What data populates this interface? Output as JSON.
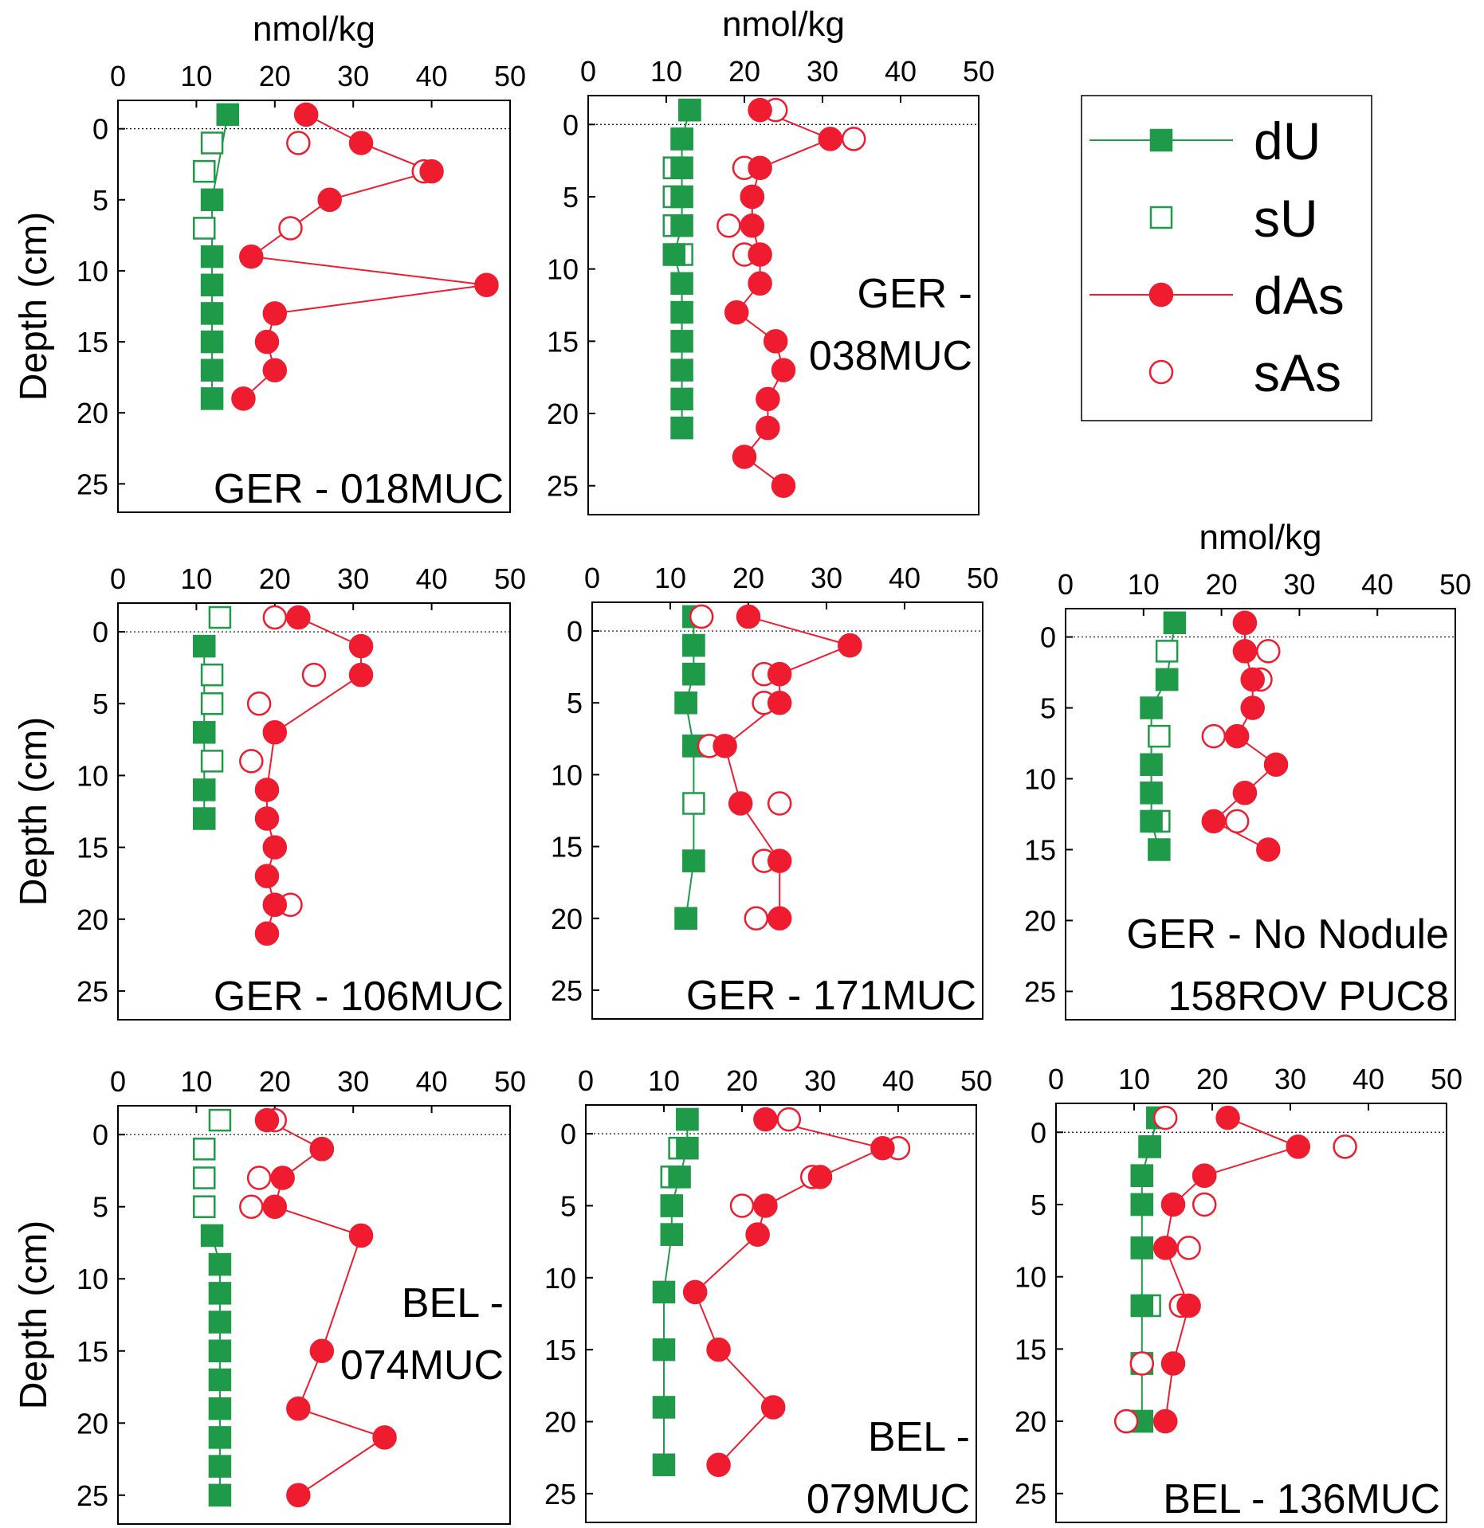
{
  "figure": {
    "x_unit_label": "nmol/kg",
    "y_axis_label": "Depth (cm)",
    "x_ticks": [
      "0",
      "10",
      "20",
      "30",
      "40",
      "50"
    ],
    "y_ticks": [
      "0",
      "5",
      "10",
      "15",
      "20",
      "25"
    ]
  },
  "colors": {
    "u": "#1f9a48",
    "as": "#ee1c2e"
  },
  "legend": {
    "items": [
      {
        "label": "dU",
        "series": "dU"
      },
      {
        "label": "sU",
        "series": "sU"
      },
      {
        "label": "dAs",
        "series": "dAs"
      },
      {
        "label": "sAs",
        "series": "sAs"
      }
    ]
  },
  "chart_data": [
    {
      "type": "line",
      "label_lines": [
        "GER - 018MUC"
      ],
      "label_pos": "bottom-right",
      "show_unit": true,
      "show_ylabel": true,
      "xlim": [
        0,
        50
      ],
      "ylim": [
        -2,
        27
      ],
      "series": [
        {
          "name": "dU",
          "x": [
            14,
            12,
            12,
            12,
            12,
            12,
            12,
            12
          ],
          "depth": [
            -1,
            5,
            9,
            11,
            13,
            15,
            17,
            19
          ]
        },
        {
          "name": "sU",
          "x": [
            12,
            11,
            11
          ],
          "depth": [
            1,
            3,
            7
          ]
        },
        {
          "name": "dAs",
          "x": [
            24,
            31,
            40,
            27,
            17,
            47,
            20,
            19,
            20,
            16
          ],
          "depth": [
            -1,
            1,
            3,
            5,
            9,
            11,
            13,
            15,
            17,
            19
          ]
        },
        {
          "name": "sAs",
          "x": [
            23,
            39,
            22
          ],
          "depth": [
            1,
            3,
            7
          ]
        }
      ]
    },
    {
      "type": "line",
      "label_lines": [
        "GER -",
        "038MUC"
      ],
      "label_pos": "mid-right",
      "show_unit": true,
      "show_ylabel": false,
      "xlim": [
        0,
        50
      ],
      "ylim": [
        -2,
        27
      ],
      "series": [
        {
          "name": "dU",
          "x": [
            13,
            12,
            12,
            12,
            12,
            11,
            12,
            12,
            12,
            12,
            12,
            12
          ],
          "depth": [
            -1,
            1,
            3,
            5,
            7,
            9,
            11,
            13,
            15,
            17,
            19,
            21
          ]
        },
        {
          "name": "sU",
          "x": [
            13,
            12,
            11,
            11,
            11,
            12
          ],
          "depth": [
            -1,
            1,
            3,
            5,
            7,
            9
          ]
        },
        {
          "name": "dAs",
          "x": [
            22,
            31,
            22,
            21,
            21,
            22,
            22,
            19,
            24,
            25,
            23,
            23,
            20,
            25
          ],
          "depth": [
            -1,
            1,
            3,
            5,
            7,
            9,
            11,
            13,
            15,
            17,
            19,
            21,
            23,
            25
          ]
        },
        {
          "name": "sAs",
          "x": [
            24,
            34,
            20,
            21,
            18,
            20
          ],
          "depth": [
            -1,
            1,
            3,
            5,
            7,
            9
          ]
        }
      ]
    },
    {
      "type": "line",
      "label_lines": [
        "GER - 106MUC"
      ],
      "label_pos": "bottom-right",
      "show_unit": false,
      "show_ylabel": true,
      "xlim": [
        0,
        50
      ],
      "ylim": [
        -2,
        27
      ],
      "series": [
        {
          "name": "dU",
          "x": [
            11,
            11,
            11,
            11
          ],
          "depth": [
            1,
            7,
            11,
            13
          ]
        },
        {
          "name": "sU",
          "x": [
            13,
            12,
            12,
            12
          ],
          "depth": [
            -1,
            3,
            5,
            9
          ]
        },
        {
          "name": "dAs",
          "x": [
            23,
            31,
            31,
            20,
            19,
            19,
            20,
            19,
            20,
            19
          ],
          "depth": [
            -1,
            1,
            3,
            7,
            11,
            13,
            15,
            17,
            19,
            21
          ]
        },
        {
          "name": "sAs",
          "x": [
            20,
            25,
            18,
            17,
            22
          ],
          "depth": [
            -1,
            3,
            5,
            9,
            19
          ]
        }
      ]
    },
    {
      "type": "line",
      "label_lines": [
        "GER - 171MUC"
      ],
      "label_pos": "bottom-right",
      "show_unit": false,
      "show_ylabel": false,
      "xlim": [
        0,
        50
      ],
      "ylim": [
        -2,
        27
      ],
      "series": [
        {
          "name": "dU",
          "x": [
            13,
            13,
            13,
            12,
            13,
            13,
            12
          ],
          "depth": [
            -1,
            1,
            3,
            5,
            8,
            16,
            20
          ]
        },
        {
          "name": "sU",
          "x": [
            13,
            13,
            13,
            12,
            13,
            13,
            13,
            12
          ],
          "depth": [
            -1,
            1,
            3,
            5,
            8,
            12,
            16,
            20
          ]
        },
        {
          "name": "dAs",
          "x": [
            20,
            33,
            24,
            24,
            17,
            19,
            24,
            24
          ],
          "depth": [
            -1,
            1,
            3,
            5,
            8,
            12,
            16,
            20
          ]
        },
        {
          "name": "sAs",
          "x": [
            14,
            33,
            22,
            22,
            15,
            24,
            22,
            21
          ],
          "depth": [
            -1,
            1,
            3,
            5,
            8,
            12,
            16,
            20
          ]
        }
      ]
    },
    {
      "type": "line",
      "label_lines": [
        "GER - No Nodule",
        "158ROV PUC8"
      ],
      "label_pos": "bottom-right",
      "show_unit": true,
      "show_ylabel": false,
      "xlim": [
        0,
        50
      ],
      "ylim": [
        -2,
        27
      ],
      "series": [
        {
          "name": "dU",
          "x": [
            14,
            13,
            11,
            11,
            11,
            11,
            12
          ],
          "depth": [
            -1,
            3,
            5,
            9,
            11,
            13,
            15
          ]
        },
        {
          "name": "sU",
          "x": [
            13,
            13,
            12,
            12
          ],
          "depth": [
            1,
            3,
            7,
            13
          ]
        },
        {
          "name": "dAs",
          "x": [
            23,
            23,
            24,
            24,
            22,
            27,
            23,
            19,
            26
          ],
          "depth": [
            -1,
            1,
            3,
            5,
            7,
            9,
            11,
            13,
            15
          ]
        },
        {
          "name": "sAs",
          "x": [
            26,
            25,
            19,
            22
          ],
          "depth": [
            1,
            3,
            7,
            13
          ]
        }
      ]
    },
    {
      "type": "line",
      "label_lines": [
        "BEL -",
        "074MUC"
      ],
      "label_pos": "mid-right",
      "show_unit": false,
      "show_ylabel": true,
      "xlim": [
        0,
        50
      ],
      "ylim": [
        -2,
        27
      ],
      "series": [
        {
          "name": "dU",
          "x": [
            12,
            13,
            13,
            13,
            13,
            13,
            13,
            13,
            13,
            13
          ],
          "depth": [
            7,
            9,
            11,
            13,
            15,
            17,
            19,
            21,
            23,
            25
          ]
        },
        {
          "name": "sU",
          "x": [
            13,
            11,
            11,
            11
          ],
          "depth": [
            -1,
            1,
            3,
            5
          ]
        },
        {
          "name": "dAs",
          "x": [
            19,
            26,
            21,
            20,
            31,
            26,
            23,
            34,
            23
          ],
          "depth": [
            -1,
            1,
            3,
            5,
            7,
            15,
            19,
            21,
            25
          ]
        },
        {
          "name": "sAs",
          "x": [
            20,
            26,
            18,
            17
          ],
          "depth": [
            -1,
            1,
            3,
            5
          ]
        }
      ]
    },
    {
      "type": "line",
      "label_lines": [
        "BEL -",
        "079MUC"
      ],
      "label_pos": "bottom-right",
      "show_unit": false,
      "show_ylabel": false,
      "xlim": [
        0,
        50
      ],
      "ylim": [
        -2,
        27
      ],
      "series": [
        {
          "name": "dU",
          "x": [
            13,
            13,
            12,
            11,
            11,
            10,
            10,
            10,
            10
          ],
          "depth": [
            -1,
            1,
            3,
            5,
            7,
            11,
            15,
            19,
            23
          ]
        },
        {
          "name": "sU",
          "x": [
            13,
            12,
            11,
            11,
            11
          ],
          "depth": [
            -1,
            1,
            3,
            5,
            7
          ]
        },
        {
          "name": "dAs",
          "x": [
            23,
            38,
            30,
            23,
            22,
            14,
            17,
            24,
            17
          ],
          "depth": [
            -1,
            1,
            3,
            5,
            7,
            11,
            15,
            19,
            23
          ]
        },
        {
          "name": "sAs",
          "x": [
            26,
            40,
            29,
            20,
            22
          ],
          "depth": [
            -1,
            1,
            3,
            5,
            7
          ]
        }
      ]
    },
    {
      "type": "line",
      "label_lines": [
        "BEL - 136MUC"
      ],
      "label_pos": "bottom-right",
      "show_unit": false,
      "show_ylabel": false,
      "xlim": [
        0,
        50
      ],
      "ylim": [
        -2,
        27
      ],
      "series": [
        {
          "name": "dU",
          "x": [
            13,
            12,
            11,
            11,
            11,
            11,
            11,
            11
          ],
          "depth": [
            -1,
            1,
            3,
            5,
            8,
            12,
            16,
            20
          ]
        },
        {
          "name": "sU",
          "x": [
            13,
            12,
            11,
            11,
            11,
            12,
            11,
            11
          ],
          "depth": [
            -1,
            1,
            3,
            5,
            8,
            12,
            16,
            20
          ]
        },
        {
          "name": "dAs",
          "x": [
            22,
            31,
            19,
            15,
            14,
            17,
            15,
            14
          ],
          "depth": [
            -1,
            1,
            3,
            5,
            8,
            12,
            16,
            20
          ]
        },
        {
          "name": "sAs",
          "x": [
            14,
            37,
            19,
            19,
            17,
            16,
            11,
            9
          ],
          "depth": [
            -1,
            1,
            3,
            5,
            8,
            12,
            16,
            20
          ]
        }
      ]
    }
  ]
}
